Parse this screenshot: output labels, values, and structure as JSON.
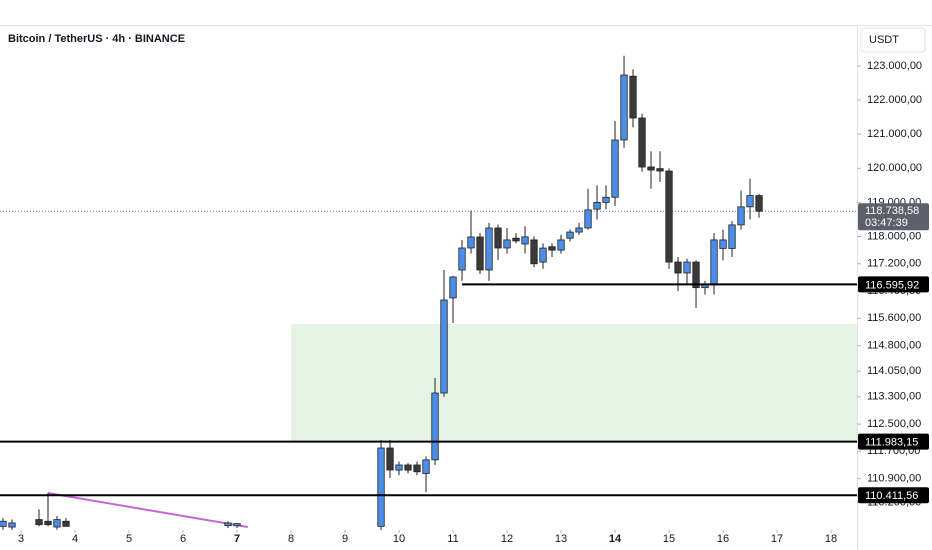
{
  "chart_data": {
    "type": "candlestick",
    "title": "Bitcoin / TetherUS · 4h · BINANCE",
    "currency": "USDT",
    "up_color": "#4a8ee8",
    "down_color": "#3a3a3a",
    "x": [
      2.6667,
      2.8333,
      3.3333,
      3.5,
      3.6667,
      3.8333,
      6.8333,
      7,
      9.6667,
      9.8333,
      10,
      10.1667,
      10.3333,
      10.5,
      10.6667,
      10.8333,
      11,
      11.1667,
      11.3333,
      11.5,
      11.6667,
      11.8333,
      12,
      12.1667,
      12.3333,
      12.5,
      12.6667,
      12.8333,
      13,
      13.1667,
      13.3333,
      13.5,
      13.6667,
      13.8333,
      14,
      14.1667,
      14.3333,
      14.5,
      14.6667,
      14.8333,
      15,
      15.1667,
      15.3333,
      15.5,
      15.6667,
      15.8333,
      16,
      16.1667,
      16.3333,
      16.5,
      16.6667
    ],
    "open": [
      109500,
      109480,
      109700,
      109650,
      109480,
      109650,
      109520,
      109520,
      109500,
      111798,
      111150,
      111300,
      111300,
      111050,
      111450,
      113410,
      116200,
      117018,
      117663,
      117986,
      117018,
      118249,
      117663,
      117950,
      117780,
      117900,
      117250,
      117700,
      117600,
      117950,
      118130,
      118250,
      118800,
      119000,
      119150,
      120830,
      122700,
      121475,
      120040,
      119990,
      119920,
      117250,
      116930,
      117250,
      116500,
      116580,
      117650,
      117650,
      118340,
      118870,
      119200
    ],
    "high": [
      109750,
      109700,
      110000,
      110478,
      109800,
      109750,
      109650,
      109600,
      112032,
      112032,
      111400,
      111350,
      111400,
      111550,
      113850,
      117018,
      116850,
      117900,
      118760,
      118100,
      118400,
      118350,
      118250,
      118100,
      118300,
      118000,
      117800,
      117800,
      118050,
      118200,
      118400,
      119400,
      119500,
      119500,
      121387,
      123300,
      122900,
      121600,
      120500,
      120500,
      120000,
      117400,
      117350,
      117300,
      116700,
      118100,
      118200,
      118450,
      119350,
      119700,
      119250
    ],
    "low": [
      109400,
      109400,
      109500,
      109500,
      109400,
      109500,
      109450,
      109450,
      109300,
      110918,
      111000,
      111050,
      111000,
      110500,
      111300,
      113300,
      115463,
      116700,
      117500,
      116900,
      116700,
      117311,
      117500,
      117800,
      117500,
      117100,
      117050,
      117400,
      117500,
      117850,
      118050,
      118200,
      118500,
      118800,
      118900,
      120600,
      121200,
      119900,
      119400,
      119600,
      117050,
      116400,
      116600,
      115903,
      116300,
      116300,
      117300,
      117400,
      118200,
      118500,
      118550
    ],
    "close": [
      109650,
      109600,
      109550,
      109550,
      109700,
      109500,
      109600,
      109580,
      111798,
      111153,
      111300,
      111150,
      111100,
      111450,
      113410,
      116138,
      116812,
      117663,
      117986,
      117018,
      118249,
      117663,
      117900,
      117870,
      117990,
      117200,
      117660,
      117600,
      117900,
      118130,
      118250,
      118780,
      119000,
      119150,
      120830,
      122736,
      121475,
      120038,
      119950,
      119920,
      117250,
      116930,
      117250,
      116500,
      116580,
      117900,
      117900,
      118340,
      118870,
      119200,
      118740
    ],
    "xlim": [
      2.611,
      18.481
    ],
    "xticks": [
      3,
      4,
      5,
      6,
      7,
      8,
      9,
      10,
      11,
      12,
      13,
      14,
      15,
      16,
      17,
      18
    ],
    "bold_xticks": [
      7,
      14
    ],
    "ylim": [
      109452,
      124202
    ],
    "yticks": [
      {
        "value": 123000,
        "label": "123.000,00"
      },
      {
        "value": 122000,
        "label": "122.000,00"
      },
      {
        "value": 121000,
        "label": "121.000,00"
      },
      {
        "value": 120000,
        "label": "120.000,00"
      },
      {
        "value": 119000,
        "label": "119.000,00"
      },
      {
        "value": 118000,
        "label": "118.000,00"
      },
      {
        "value": 117200,
        "label": "117.200,00"
      },
      {
        "value": 116400,
        "label": "116.400,00"
      },
      {
        "value": 115600,
        "label": "115.600,00"
      },
      {
        "value": 114800,
        "label": "114.800,00"
      },
      {
        "value": 114050,
        "label": "114.050,00"
      },
      {
        "value": 113300,
        "label": "113.300,00"
      },
      {
        "value": 112500,
        "label": "112.500,00"
      },
      {
        "value": 111700,
        "label": "111.700,00"
      },
      {
        "value": 110900,
        "label": "110.900,00"
      },
      {
        "value": 110200,
        "label": "110.200,00"
      }
    ],
    "zone": {
      "top": 115430,
      "bottom": 111983,
      "start": 8,
      "color": "#e4f3e4"
    },
    "trendline": {
      "x": [
        3.5,
        7.2
      ],
      "y": [
        110478,
        109481
      ],
      "color": "#c466d6"
    },
    "levels": [
      {
        "value": 116595.92,
        "label": "116.595,92",
        "start": 11.1667
      },
      {
        "value": 111983.15,
        "label": "111.983,15",
        "start": 2.611
      },
      {
        "value": 110411.56,
        "label": "110.411,56",
        "start": 2.611
      }
    ],
    "current_price": {
      "value": 118738.58,
      "label": "118.738,58",
      "countdown": "03:47:39"
    }
  }
}
